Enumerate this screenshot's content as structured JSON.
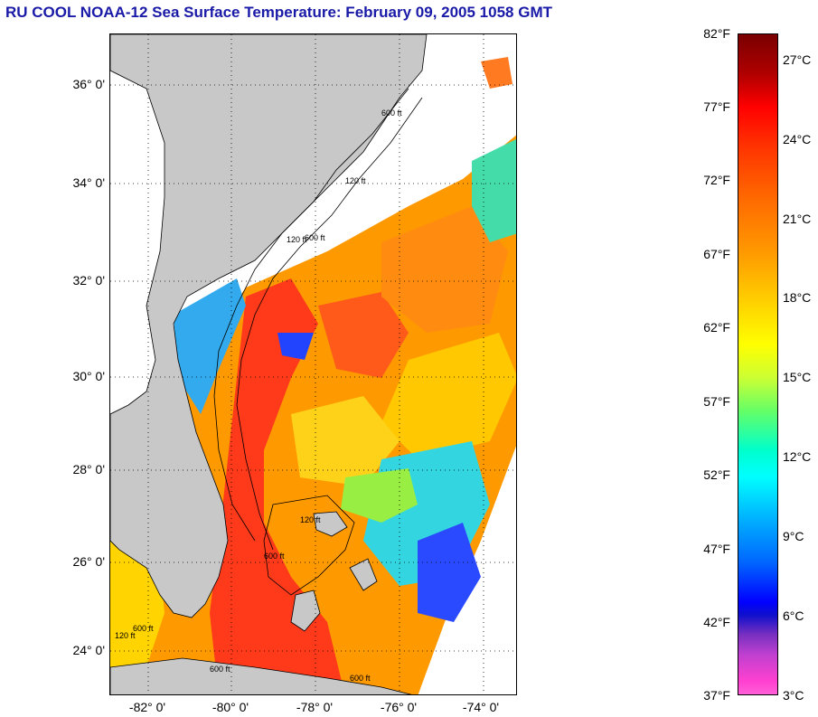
{
  "title": "RU COOL  NOAA-12  Sea Surface Temperature:  February 09, 2005 1058 GMT",
  "map": {
    "latitude_labels": [
      "36° 0'",
      "34° 0'",
      "32° 0'",
      "30° 0'",
      "28° 0'",
      "26° 0'",
      "24° 0'"
    ],
    "longitude_labels": [
      "-82° 0'",
      "-80° 0'",
      "-78° 0'",
      "-76° 0'",
      "-74° 0'"
    ],
    "isobath_labels": [
      "120 ft",
      "600 ft",
      "120 ft",
      "600 ft",
      "120 ft",
      "600 ft",
      "600 ft",
      "120 ft",
      "600 ft",
      "600 ft"
    ],
    "colors": {
      "land": "#c8c8c8",
      "clouds": "#ffffff",
      "warm": "#ff4a1a",
      "mid": "#ffb400",
      "cool": "#22ccee",
      "cold": "#1a3aff"
    }
  },
  "colorbar": {
    "fahrenheit": [
      "82°F",
      "77°F",
      "72°F",
      "67°F",
      "62°F",
      "57°F",
      "52°F",
      "47°F",
      "42°F",
      "37°F"
    ],
    "celsius": [
      "27°C",
      "24°C",
      "21°C",
      "18°C",
      "15°C",
      "12°C",
      "9°C",
      "6°C",
      "3°C"
    ]
  }
}
